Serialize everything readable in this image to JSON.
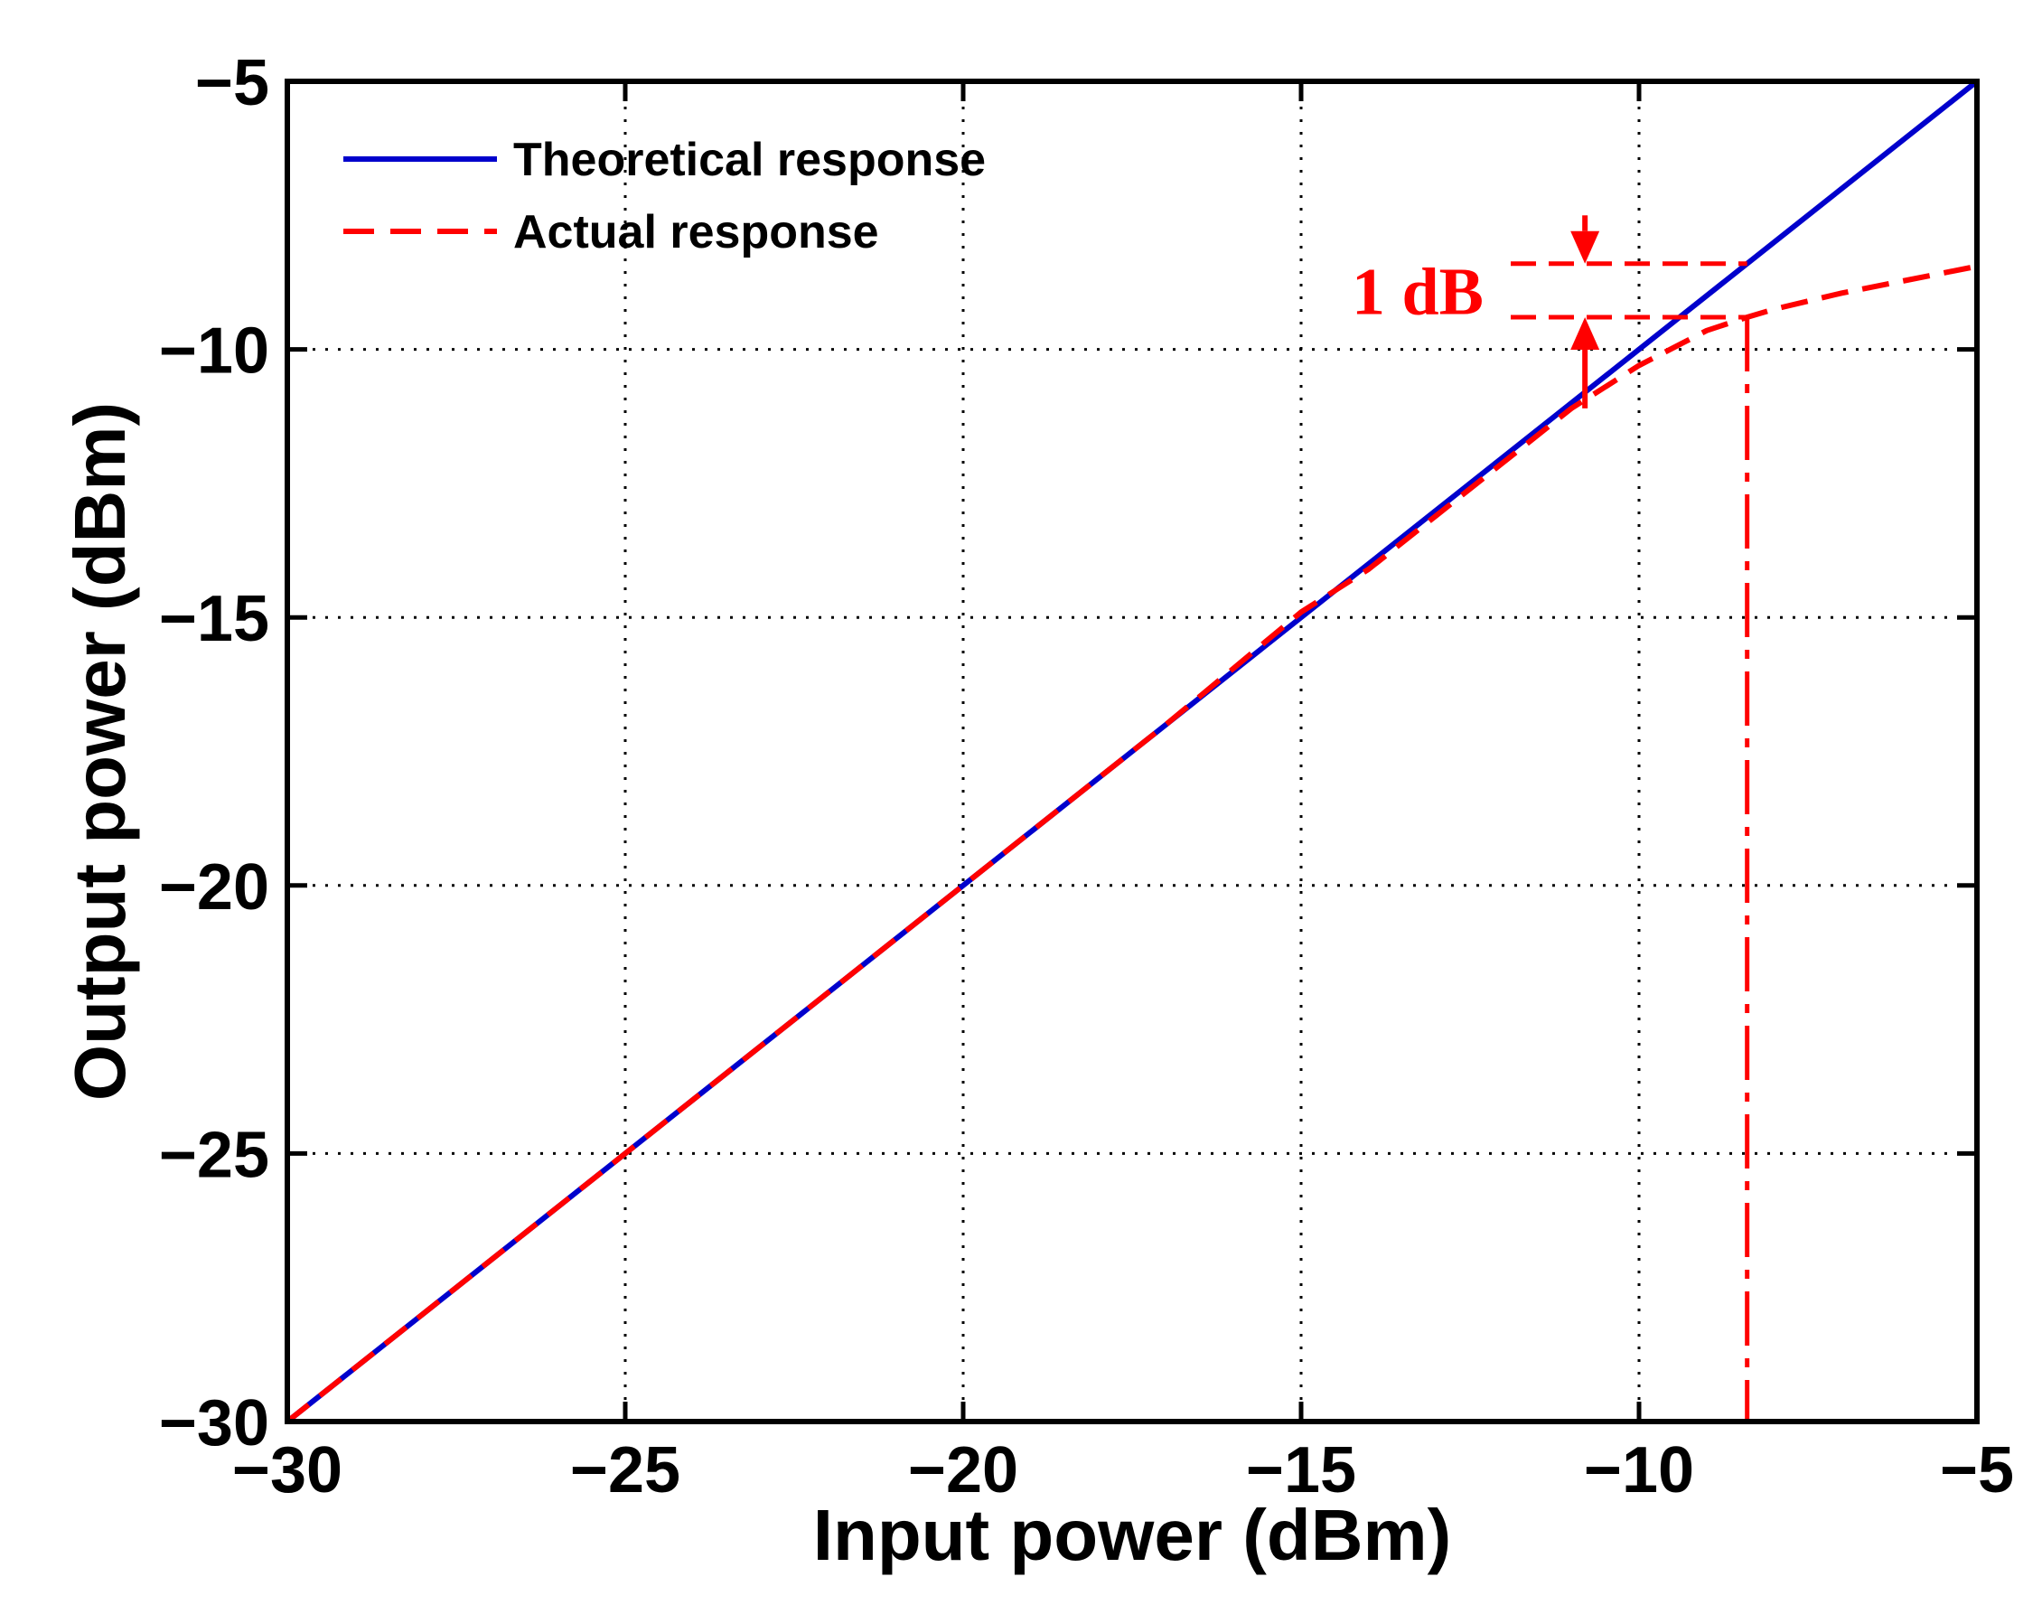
{
  "chart_data": {
    "type": "line",
    "title": "",
    "xlabel": "Input power (dBm)",
    "ylabel": "Output power (dBm)",
    "xlim": [
      -30,
      -5
    ],
    "ylim": [
      -30,
      -5
    ],
    "xticks": [
      -30,
      -25,
      -20,
      -15,
      -10,
      -5
    ],
    "yticks": [
      -30,
      -25,
      -20,
      -15,
      -10,
      -5
    ],
    "xtick_labels": [
      "−30",
      "−25",
      "−20",
      "−15",
      "−10",
      "−5"
    ],
    "ytick_labels": [
      "−30",
      "−25",
      "−20",
      "−15",
      "−10",
      "−5"
    ],
    "grid": true,
    "legend_position": "top-left",
    "series": [
      {
        "name": "Theoretical response",
        "color": "#0000cc",
        "style": "solid",
        "x": [
          -30,
          -5
        ],
        "y": [
          -30,
          -5
        ]
      },
      {
        "name": "Actual response",
        "color": "#ff0000",
        "style": "dashed",
        "x": [
          -30,
          -25,
          -20,
          -17,
          -15,
          -14,
          -13,
          -12,
          -11,
          -10,
          -9,
          -8.4,
          -8,
          -7,
          -6,
          -5
        ],
        "y": [
          -30,
          -25,
          -20,
          -17,
          -14.9,
          -14.1,
          -13.1,
          -12.1,
          -11.1,
          -10.3,
          -9.65,
          -9.4,
          -9.25,
          -8.95,
          -8.7,
          -8.45
        ]
      }
    ],
    "annotations": {
      "label": "1 dB",
      "compression_point_x": -8.4,
      "compression_upper_y": -8.4,
      "compression_lower_y": -9.4,
      "arrow_x": -10.8,
      "arrow_lower_tail_y": -11.1,
      "arrow_upper_tail_y": -7.5,
      "color": "#ff0000"
    }
  }
}
